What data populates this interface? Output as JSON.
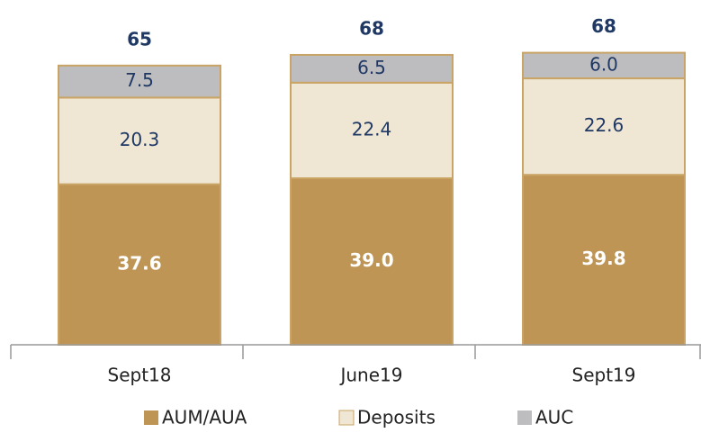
{
  "chart_data": {
    "type": "stacked_bar",
    "categories": [
      "Sept18",
      "June19",
      "Sept19"
    ],
    "series": [
      {
        "name": "AUM/AUA",
        "color": "#bf9556",
        "values": [
          37.6,
          39.0,
          39.8
        ],
        "value_labels": [
          "37.6",
          "39.0",
          "39.8"
        ]
      },
      {
        "name": "Deposits",
        "color": "#efe6d4",
        "values": [
          20.3,
          22.4,
          22.6
        ],
        "value_labels": [
          "20.3",
          "22.4",
          "22.6"
        ]
      },
      {
        "name": "AUC",
        "color": "#bdbdc0",
        "values": [
          7.5,
          6.5,
          6.0
        ],
        "value_labels": [
          "7.5",
          "6.5",
          "6.0"
        ]
      }
    ],
    "totals": [
      65,
      68,
      68
    ],
    "ylim": [
      0,
      70
    ],
    "legend": "bottom"
  }
}
